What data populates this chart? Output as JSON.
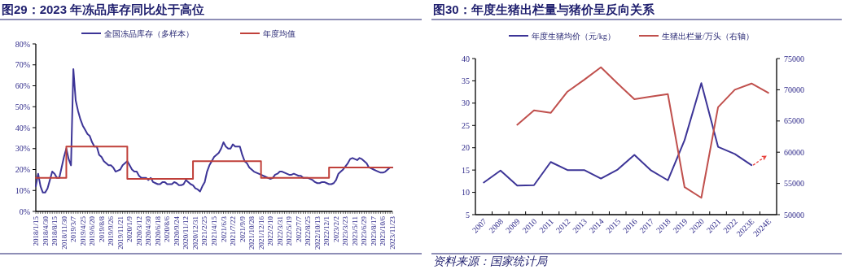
{
  "chart_data": [
    {
      "type": "line",
      "title": "图29：2023 年冻品库存同比处于高位",
      "categories": [
        "2018/1/15",
        null,
        null,
        null,
        "2018/4/30",
        null,
        null,
        null,
        "2018/8/15",
        null,
        null,
        null,
        "2018/11/30",
        null,
        null,
        null,
        "2019/3/7",
        null,
        null,
        null,
        "2019/4/25",
        null,
        null,
        null,
        "2019/6/20",
        null,
        null,
        null,
        "2019/8/8",
        null,
        null,
        null,
        "2019/9/26",
        null,
        null,
        null,
        "2019/11/21",
        null,
        null,
        null,
        "2020/1/9",
        null,
        null,
        null,
        "2020/3/12",
        null,
        null,
        null,
        "2020/4/30",
        null,
        null,
        null,
        "2020/6/18",
        null,
        null,
        null,
        "2020/8/6",
        null,
        null,
        null,
        "2020/9/24",
        null,
        null,
        null,
        "2020/11/12",
        null,
        null,
        null,
        "2020/12/31",
        null,
        null,
        null,
        "2021/2/25",
        null,
        null,
        null,
        "2021/4/15",
        null,
        null,
        null,
        "2021/6/3",
        null,
        null,
        null,
        "2021/7/22",
        null,
        null,
        null,
        "2021/9/9",
        null,
        null,
        null,
        "2021/10/28",
        null,
        null,
        null,
        "2021/12/16",
        null,
        null,
        null,
        "2022/2/10",
        null,
        null,
        null,
        "2022/3/31",
        null,
        null,
        null,
        "2022/5/19",
        null,
        null,
        null,
        "2022/7/7",
        null,
        null,
        null,
        "2022/8/25",
        null,
        null,
        null,
        "2022/10/13",
        null,
        null,
        null,
        "2022/12/1",
        null,
        null,
        null,
        "2023/2/2",
        null,
        null,
        null,
        "2023/3/23",
        null,
        null,
        null,
        "2023/5/11",
        null,
        null,
        null,
        "2023/6/29",
        null,
        null,
        null,
        "2023/8/17",
        null,
        null,
        null,
        "2023/10/6",
        null,
        null,
        null,
        "2023/11/23"
      ],
      "series": [
        {
          "name": "全国冻品库存（多样本）",
          "color": "#3d3597",
          "values": [
            12,
            18,
            12,
            9,
            9,
            11,
            15,
            19,
            18,
            16,
            16,
            21,
            26,
            30,
            25,
            22,
            68,
            53,
            48,
            44,
            41,
            39,
            37,
            36,
            33,
            31,
            31,
            27,
            26,
            24,
            23,
            22,
            22,
            21,
            19,
            19.5,
            20,
            22,
            23,
            24,
            22,
            20,
            19,
            19,
            17,
            16,
            16,
            16,
            15,
            16,
            14,
            13.5,
            13,
            13,
            14,
            14,
            13,
            13,
            13,
            14,
            13.5,
            12.5,
            12.5,
            13,
            15,
            14,
            13,
            12.5,
            11,
            10.5,
            9.5,
            12,
            14,
            19,
            22,
            24,
            26,
            27,
            28,
            30,
            33,
            31,
            30,
            30,
            32,
            31,
            31,
            31,
            27,
            24,
            23,
            21,
            20,
            19,
            18.5,
            18,
            17.5,
            17,
            16.5,
            16,
            15.5,
            16,
            17.5,
            18,
            19,
            19,
            18.5,
            18,
            17.5,
            17.5,
            18,
            17.5,
            17,
            17,
            16,
            16,
            16,
            15.5,
            15,
            14,
            13.5,
            13.5,
            14,
            14,
            13.5,
            13,
            13,
            13.5,
            15,
            18,
            19,
            20,
            21.5,
            23,
            25,
            25.5,
            25,
            24.5,
            25.5,
            25,
            24,
            23,
            21,
            20.5,
            20,
            19.5,
            19,
            18.5,
            18.5,
            19,
            20,
            21,
            21
          ]
        },
        {
          "name": "年度均值",
          "type": "step",
          "color": "#c0403a",
          "values": [
            16,
            16,
            16,
            16,
            16,
            16,
            16,
            16,
            16,
            16,
            16,
            16,
            16,
            31,
            31,
            31,
            31,
            31,
            31,
            31,
            31,
            31,
            31,
            31,
            31,
            31,
            31,
            31,
            31,
            31,
            31,
            31,
            31,
            31,
            31,
            31,
            31,
            31,
            31,
            15.5,
            15.5,
            15.5,
            15.5,
            15.5,
            15.5,
            15.5,
            15.5,
            15.5,
            15.5,
            15.5,
            15.5,
            15.5,
            15.5,
            15.5,
            15.5,
            15.5,
            15.5,
            15.5,
            15.5,
            15.5,
            15.5,
            15.5,
            15.5,
            15.5,
            15.5,
            15.5,
            15.5,
            24,
            24,
            24,
            24,
            24,
            24,
            24,
            24,
            24,
            24,
            24,
            24,
            24,
            24,
            24,
            24,
            24,
            24,
            24,
            24,
            24,
            24,
            24,
            24,
            24,
            24,
            24,
            24,
            24,
            16,
            16,
            16,
            16,
            16,
            16,
            16,
            16,
            16,
            16,
            16,
            16,
            16,
            16,
            16,
            16,
            16,
            16,
            16,
            16,
            16,
            16,
            16,
            16,
            16,
            16,
            16,
            16,
            16,
            21,
            21,
            21,
            21,
            21,
            21,
            21,
            21,
            21,
            21,
            21,
            21,
            21,
            21,
            21,
            21,
            21,
            21,
            21,
            21,
            21,
            21,
            21,
            21,
            21,
            21,
            21,
            21
          ]
        }
      ],
      "ylim": [
        0,
        80
      ],
      "yticks": [
        {
          "value": 0,
          "label": "0%"
        },
        {
          "value": 10,
          "label": "10%"
        },
        {
          "value": 20,
          "label": "20%"
        },
        {
          "value": 30,
          "label": "30%"
        },
        {
          "value": 40,
          "label": "40%"
        },
        {
          "value": 50,
          "label": "50%"
        },
        {
          "value": 60,
          "label": "60%"
        },
        {
          "value": 70,
          "label": "70%"
        },
        {
          "value": 80,
          "label": "80%"
        }
      ],
      "legend": "top"
    },
    {
      "type": "line",
      "title": "图30：年度生猪出栏量与猪价呈反向关系",
      "categories": [
        "2007",
        "2008",
        "2009",
        "2010",
        "2011",
        "2012",
        "2013",
        "2014",
        "2015",
        "2016",
        "2017",
        "2018",
        "2019",
        "2020",
        "2021",
        "2022",
        "2023E",
        "2024E"
      ],
      "series": [
        {
          "name": "年度生猪均价（元/kg）",
          "color": "#3d3597",
          "values": [
            12.2,
            14.9,
            11.5,
            11.6,
            16.8,
            15.0,
            15.0,
            13.1,
            15.1,
            18.4,
            14.9,
            12.7,
            21.7,
            34.5,
            20.2,
            18.6,
            16.1,
            null
          ]
        },
        {
          "name": "生猪出栏量/万头（右轴）",
          "color": "#c0504d",
          "axis": "y2",
          "values": [
            null,
            null,
            64400,
            66700,
            66300,
            69700,
            71600,
            73600,
            71000,
            68500,
            68900,
            69300,
            54400,
            52700,
            67200,
            70000,
            71000,
            69500
          ]
        }
      ],
      "ylim": [
        5,
        40
      ],
      "yticks": [
        5,
        10,
        15,
        20,
        25,
        30,
        35,
        40
      ],
      "y2lim": [
        50000,
        75000
      ],
      "y2ticks": [
        50000,
        55000,
        60000,
        65000,
        70000,
        75000
      ],
      "legend": "top",
      "annotations": [
        "资料来源：国家统计局"
      ]
    }
  ]
}
